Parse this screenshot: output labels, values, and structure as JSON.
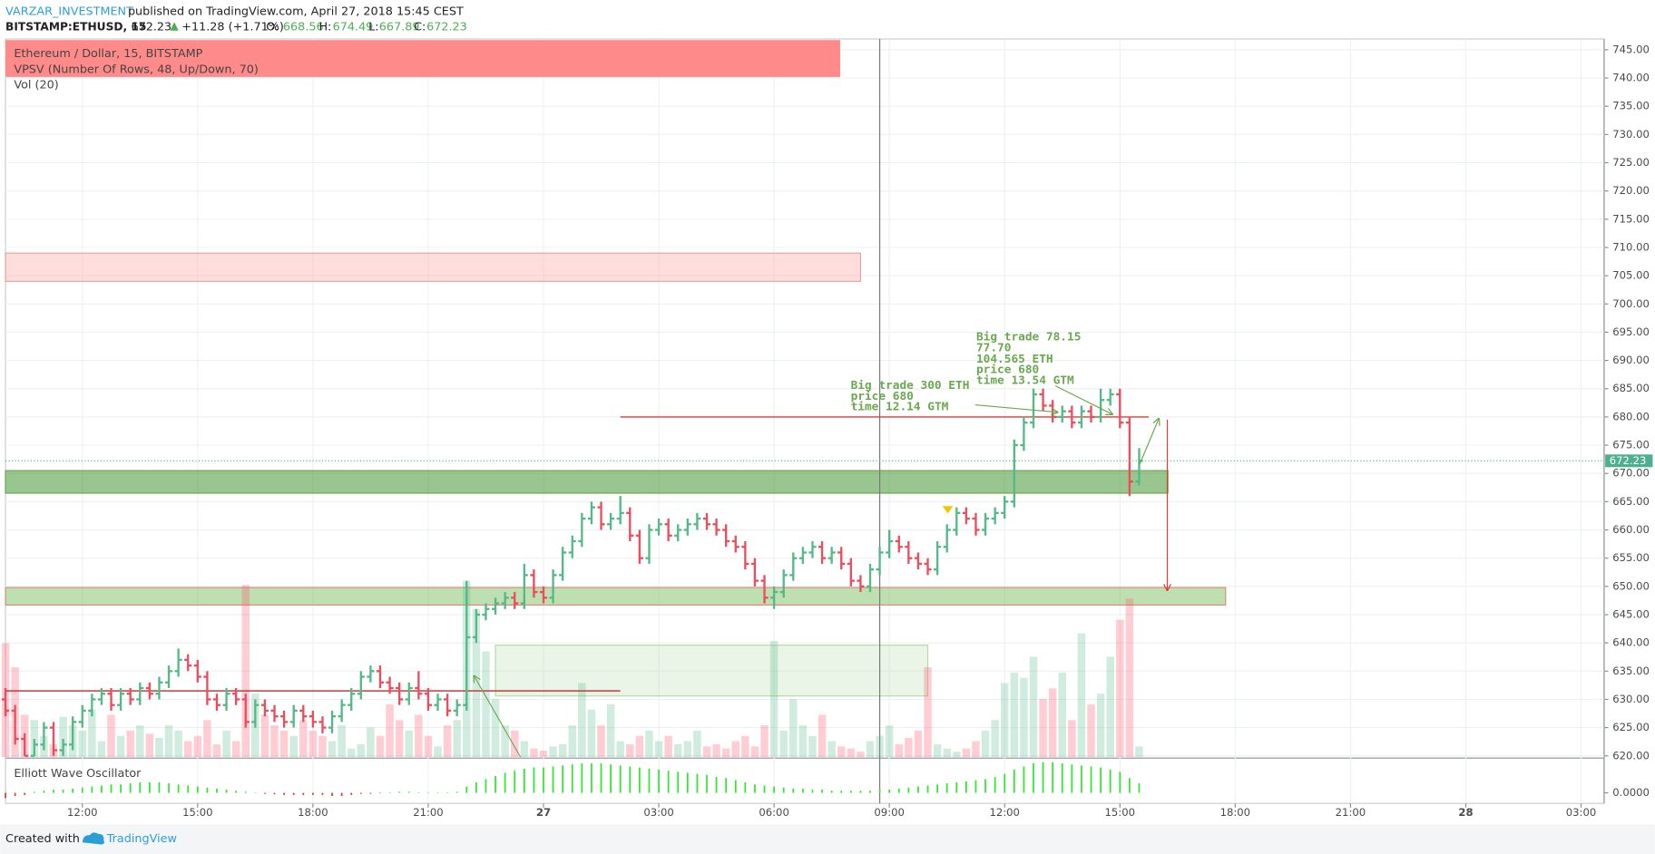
{
  "header": {
    "author": "VARZAR_INVESTMENT",
    "published": "published on TradingView.com, April 27, 2018 15:45 CEST",
    "symbol": "BITSTAMP:ETHUSD, 15",
    "last": 672.23,
    "change": "+11.28 (+1.71%)",
    "ohlc_labels": [
      "O:",
      "H:",
      "L:",
      "C:"
    ],
    "ohlc_values": [
      668.56,
      674.49,
      667.89,
      672.23
    ]
  },
  "footer": {
    "created": "Created with",
    "brand": "TradingView"
  },
  "chart_data": {
    "type": "ohlc",
    "title": "Ethereum / Dollar, 15, BITSTAMP",
    "indicators": [
      "VPSV (Number Of Rows, 48, Up/Down, 70)",
      "Vol (20)"
    ],
    "up_color": "#53b987",
    "down_color": "#eb4d5c",
    "grid": true,
    "xlim": [
      10,
      51.6
    ],
    "xticks": [
      {
        "value": 12,
        "label": "12:00"
      },
      {
        "value": 15,
        "label": "15:00"
      },
      {
        "value": 18,
        "label": "18:00"
      },
      {
        "value": 21,
        "label": "21:00"
      },
      {
        "value": 24,
        "label": "27"
      },
      {
        "value": 27,
        "label": "03:00"
      },
      {
        "value": 30,
        "label": "06:00"
      },
      {
        "value": 33,
        "label": "09:00"
      },
      {
        "value": 36,
        "label": "12:00"
      },
      {
        "value": 39,
        "label": "15:00"
      },
      {
        "value": 42,
        "label": "18:00"
      },
      {
        "value": 45,
        "label": "21:00"
      },
      {
        "value": 48,
        "label": "28"
      },
      {
        "value": 51,
        "label": "03:00"
      }
    ],
    "ylim": [
      619.8,
      746.9
    ],
    "yticks": [
      {
        "value": 620,
        "label": "620.00"
      },
      {
        "value": 625,
        "label": "625.00"
      },
      {
        "value": 630,
        "label": "630.00"
      },
      {
        "value": 635,
        "label": "635.00"
      },
      {
        "value": 640,
        "label": "640.00"
      },
      {
        "value": 645,
        "label": "645.00"
      },
      {
        "value": 650,
        "label": "650.00"
      },
      {
        "value": 655,
        "label": "655.00"
      },
      {
        "value": 660,
        "label": "660.00"
      },
      {
        "value": 665,
        "label": "665.00"
      },
      {
        "value": 670,
        "label": "670.00"
      },
      {
        "value": 675,
        "label": "675.00"
      },
      {
        "value": 680,
        "label": "680.00"
      },
      {
        "value": 685,
        "label": "685.00"
      },
      {
        "value": 690,
        "label": "690.00"
      },
      {
        "value": 695,
        "label": "695.00"
      },
      {
        "value": 700,
        "label": "700.00"
      },
      {
        "value": 705,
        "label": "705.00"
      },
      {
        "value": 710,
        "label": "710.00"
      },
      {
        "value": 715,
        "label": "715.00"
      },
      {
        "value": 720,
        "label": "720.00"
      },
      {
        "value": 725,
        "label": "725.00"
      },
      {
        "value": 730,
        "label": "730.00"
      },
      {
        "value": 735,
        "label": "735.00"
      },
      {
        "value": 740,
        "label": "740.00"
      },
      {
        "value": 745,
        "label": "745.00"
      }
    ],
    "last_price": 672.23,
    "last_color": "#4caf8d",
    "x": [
      10,
      10.25,
      10.5,
      10.75,
      11,
      11.25,
      11.5,
      11.75,
      12,
      12.25,
      12.5,
      12.75,
      13,
      13.25,
      13.5,
      13.75,
      14,
      14.25,
      14.5,
      14.75,
      15,
      15.25,
      15.5,
      15.75,
      16,
      16.25,
      16.5,
      16.75,
      17,
      17.25,
      17.5,
      17.75,
      18,
      18.25,
      18.5,
      18.75,
      19,
      19.25,
      19.5,
      19.75,
      20,
      20.25,
      20.5,
      20.75,
      21,
      21.25,
      21.5,
      21.75,
      22,
      22.25,
      22.5,
      22.75,
      23,
      23.25,
      23.5,
      23.75,
      24,
      24.25,
      24.5,
      24.75,
      25,
      25.25,
      25.5,
      25.75,
      26,
      26.25,
      26.5,
      26.75,
      27,
      27.25,
      27.5,
      27.75,
      28,
      28.25,
      28.5,
      28.75,
      29,
      29.25,
      29.5,
      29.75,
      30,
      30.25,
      30.5,
      30.75,
      31,
      31.25,
      31.5,
      31.75,
      32,
      32.25,
      32.5,
      32.75,
      33,
      33.25,
      33.5,
      33.75,
      34,
      34.25,
      34.5,
      34.75,
      35,
      35.25,
      35.5,
      35.75,
      36,
      36.25,
      36.5,
      36.75,
      37,
      37.25,
      37.5,
      37.75,
      38,
      38.25,
      38.5,
      38.75,
      39,
      39.25,
      39.5
    ],
    "ohlc": [
      [
        630,
        632,
        627,
        628
      ],
      [
        628,
        629,
        622,
        623
      ],
      [
        623,
        624,
        620,
        620
      ],
      [
        620,
        623,
        620,
        622
      ],
      [
        622,
        626,
        621,
        625
      ],
      [
        625,
        626,
        620,
        621
      ],
      [
        621,
        623,
        620,
        622
      ],
      [
        622,
        627,
        621,
        626
      ],
      [
        626,
        629,
        625,
        628
      ],
      [
        628,
        631,
        627,
        630
      ],
      [
        630,
        632,
        629,
        631
      ],
      [
        631,
        632,
        628,
        629
      ],
      [
        629,
        632,
        628,
        631
      ],
      [
        631,
        632,
        629,
        630
      ],
      [
        630,
        633,
        629,
        632
      ],
      [
        632,
        633,
        630,
        631
      ],
      [
        631,
        634,
        630,
        633
      ],
      [
        633,
        636,
        632,
        635
      ],
      [
        635,
        639,
        634,
        637
      ],
      [
        637,
        638,
        635,
        636
      ],
      [
        636,
        637,
        633,
        634
      ],
      [
        634,
        635,
        629,
        630
      ],
      [
        630,
        631,
        628,
        629
      ],
      [
        629,
        632,
        628,
        631
      ],
      [
        631,
        632,
        629,
        630
      ],
      [
        630,
        631,
        625,
        626
      ],
      [
        626,
        630,
        625,
        629
      ],
      [
        629,
        630,
        627,
        628
      ],
      [
        628,
        629,
        626,
        627
      ],
      [
        627,
        628,
        625,
        626
      ],
      [
        626,
        629,
        625,
        628
      ],
      [
        628,
        629,
        626,
        627
      ],
      [
        627,
        628,
        625,
        626
      ],
      [
        626,
        627,
        624,
        625
      ],
      [
        625,
        628,
        624,
        627
      ],
      [
        627,
        630,
        626,
        629
      ],
      [
        629,
        632,
        628,
        631
      ],
      [
        631,
        635,
        630,
        634
      ],
      [
        634,
        636,
        633,
        635
      ],
      [
        635,
        636,
        632,
        633
      ],
      [
        633,
        634,
        631,
        632
      ],
      [
        632,
        633,
        629,
        630
      ],
      [
        630,
        633,
        629,
        632
      ],
      [
        632,
        635,
        630,
        631
      ],
      [
        631,
        632,
        628,
        629
      ],
      [
        629,
        631,
        628,
        630
      ],
      [
        630,
        631,
        627,
        628
      ],
      [
        628,
        630,
        627,
        629
      ],
      [
        629,
        651,
        628,
        641
      ],
      [
        641,
        646,
        640,
        645
      ],
      [
        645,
        647,
        644,
        646
      ],
      [
        646,
        648,
        645,
        647
      ],
      [
        647,
        649,
        646,
        648
      ],
      [
        648,
        649,
        646,
        647
      ],
      [
        647,
        654,
        646,
        652
      ],
      [
        652,
        653,
        648,
        649
      ],
      [
        649,
        650,
        647,
        648
      ],
      [
        648,
        653,
        647,
        652
      ],
      [
        652,
        657,
        651,
        656
      ],
      [
        656,
        659,
        655,
        658
      ],
      [
        658,
        663,
        657,
        662
      ],
      [
        662,
        665,
        661,
        664
      ],
      [
        664,
        665,
        660,
        661
      ],
      [
        661,
        663,
        660,
        662
      ],
      [
        662,
        666,
        661,
        663
      ],
      [
        663,
        664,
        658,
        659
      ],
      [
        659,
        660,
        654,
        655
      ],
      [
        655,
        661,
        654,
        660
      ],
      [
        660,
        662,
        659,
        661
      ],
      [
        661,
        662,
        658,
        659
      ],
      [
        659,
        661,
        658,
        660
      ],
      [
        660,
        662,
        659,
        661
      ],
      [
        661,
        663,
        660,
        662
      ],
      [
        662,
        663,
        660,
        661
      ],
      [
        661,
        662,
        659,
        660
      ],
      [
        660,
        661,
        657,
        658
      ],
      [
        658,
        659,
        656,
        657
      ],
      [
        657,
        658,
        653,
        654
      ],
      [
        654,
        655,
        650,
        651
      ],
      [
        651,
        652,
        647,
        648
      ],
      [
        648,
        650,
        646,
        649
      ],
      [
        649,
        653,
        648,
        652
      ],
      [
        652,
        656,
        651,
        655
      ],
      [
        655,
        657,
        654,
        656
      ],
      [
        656,
        658,
        655,
        657
      ],
      [
        657,
        658,
        654,
        655
      ],
      [
        655,
        657,
        654,
        656
      ],
      [
        656,
        657,
        653,
        654
      ],
      [
        654,
        655,
        650,
        651
      ],
      [
        651,
        652,
        649,
        650
      ],
      [
        650,
        654,
        649,
        653
      ],
      [
        653,
        657,
        652,
        656
      ],
      [
        656,
        660,
        655,
        658
      ],
      [
        658,
        659,
        656,
        657
      ],
      [
        657,
        658,
        654,
        655
      ],
      [
        655,
        656,
        653,
        654
      ],
      [
        654,
        655,
        652,
        653
      ],
      [
        653,
        658,
        652,
        657
      ],
      [
        657,
        661,
        656,
        660
      ],
      [
        660,
        664,
        659,
        663
      ],
      [
        663,
        664,
        661,
        662
      ],
      [
        662,
        663,
        659,
        660
      ],
      [
        660,
        663,
        659,
        662
      ],
      [
        662,
        664,
        661,
        663
      ],
      [
        663,
        666,
        662,
        665
      ],
      [
        665,
        676,
        664,
        675
      ],
      [
        675,
        680,
        674,
        679
      ],
      [
        679,
        685,
        678,
        684
      ],
      [
        684,
        685,
        681,
        682
      ],
      [
        682,
        683,
        679,
        680
      ],
      [
        680,
        682,
        679,
        681
      ],
      [
        681,
        682,
        678,
        679
      ],
      [
        679,
        682,
        678,
        681
      ],
      [
        681,
        682,
        679,
        680
      ],
      [
        680,
        685,
        679,
        683
      ],
      [
        683,
        685,
        682,
        684
      ],
      [
        684,
        685,
        678,
        679
      ],
      [
        679,
        680,
        666,
        668.56
      ],
      [
        668.56,
        674.49,
        667.89,
        672.23
      ]
    ],
    "volume": {
      "lim": [
        0,
        680
      ],
      "values": [
        108,
        85,
        40,
        35,
        20,
        12,
        38,
        30,
        25,
        45,
        15,
        40,
        20,
        25,
        30,
        22,
        18,
        30,
        25,
        15,
        20,
        35,
        12,
        25,
        15,
        163,
        60,
        40,
        30,
        25,
        20,
        35,
        25,
        20,
        15,
        30,
        8,
        12,
        28,
        20,
        50,
        35,
        25,
        40,
        20,
        10,
        30,
        35,
        167,
        140,
        100,
        55,
        30,
        25,
        15,
        8,
        6,
        10,
        12,
        30,
        70,
        45,
        30,
        50,
        15,
        12,
        20,
        25,
        15,
        20,
        12,
        15,
        25,
        10,
        12,
        8,
        15,
        20,
        10,
        30,
        110,
        25,
        55,
        30,
        20,
        40,
        15,
        10,
        8,
        5,
        15,
        20,
        30,
        12,
        18,
        25,
        85,
        12,
        8,
        5,
        8,
        15,
        25,
        35,
        70,
        80,
        75,
        95,
        55,
        65,
        80,
        35,
        117,
        50,
        60,
        95,
        130,
        150,
        10
      ]
    },
    "oscillator": {
      "name": "Elliott Wave Oscillator",
      "up_color": "#2ee82e",
      "down_color": "#e53935",
      "ylim": [
        -10,
        32
      ],
      "yticks": [
        {
          "value": 0,
          "label": "0.0000"
        }
      ],
      "values": [
        -5,
        -3,
        -2,
        1,
        2,
        3,
        3,
        4,
        5,
        6,
        7,
        8,
        8,
        9,
        10,
        10,
        10,
        9,
        8,
        7,
        6,
        5,
        4,
        3,
        2,
        1,
        0.5,
        -1,
        -1.5,
        -2,
        -2,
        -2,
        -2,
        -2,
        -3,
        -3,
        -2,
        -1,
        -1,
        -0.5,
        0.5,
        1,
        1,
        0.5,
        0.5,
        0.5,
        0.5,
        1,
        6,
        10,
        13,
        16,
        19,
        21,
        23,
        24,
        24,
        25,
        26,
        27,
        28,
        28,
        28,
        27,
        26,
        25,
        24,
        23,
        22,
        21,
        20,
        19,
        18,
        17,
        15,
        14,
        12,
        10,
        8,
        7,
        6,
        5,
        4,
        4,
        3,
        3,
        2,
        2,
        2,
        2,
        2,
        3,
        3,
        4,
        5,
        6,
        7,
        8,
        9,
        10,
        11,
        12,
        13,
        15,
        18,
        22,
        25,
        28,
        29,
        29,
        28,
        27,
        26,
        25,
        24,
        22,
        20,
        14,
        9
      ]
    },
    "zones": [
      {
        "y": [
          704,
          709
        ],
        "x": [
          10,
          32.25
        ],
        "fill": "rgba(255,170,170,0.4)",
        "stroke": "#e3a39f"
      },
      {
        "y": [
          666.5,
          670.5
        ],
        "x": [
          10,
          40.25
        ],
        "fill": "rgba(70,150,50,0.55)",
        "stroke": "#6aa84f"
      },
      {
        "y": [
          646.7,
          649.8
        ],
        "x": [
          10,
          41.75
        ],
        "fill": "rgba(110,185,80,0.45)",
        "stroke": "#d98b7f"
      },
      {
        "y": [
          630.6,
          639.6
        ],
        "x": [
          22.75,
          34
        ],
        "fill": "rgba(140,200,120,0.18)",
        "stroke": "#b6d7a8"
      }
    ],
    "levels": [
      {
        "y": 680,
        "x": [
          26,
          39.75
        ],
        "color": "#e53935"
      },
      {
        "y": 631.5,
        "x": [
          10,
          26
        ],
        "color": "#c62828"
      }
    ],
    "vline": 32.75,
    "annotations": [
      {
        "lines": [
          "Big trade 300 ETH",
          "price 680",
          "time 12.14 GTM"
        ]
      },
      {
        "lines": [
          "Big trade 78.15",
          "77.70",
          "104.565 ETH",
          "price 680",
          "time 13.54 GTM"
        ]
      }
    ],
    "annotation_color": "#6aa84f"
  }
}
